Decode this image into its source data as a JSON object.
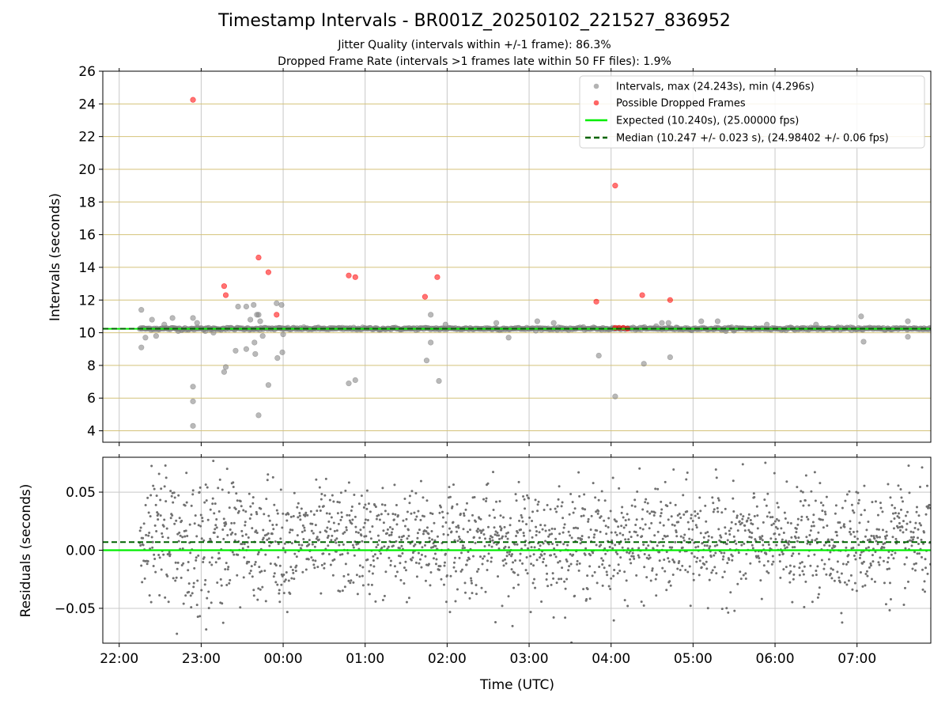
{
  "title": "Timestamp Intervals - BR001Z_20250102_221527_836952",
  "subtitles": [
    "Jitter Quality (intervals within +/-1 frame): 86.3%",
    "Dropped Frame Rate (intervals >1 frames late within 50 FF files): 1.9%"
  ],
  "colors": {
    "intervals": "#808080",
    "dropped": "#ff0000",
    "expected": "#00ee00",
    "median": "#006400",
    "hgrid": "#d4c27a",
    "vgrid": "#c8c8c8"
  },
  "chart_data": [
    {
      "type": "scatter",
      "title": "",
      "xlabel": "",
      "ylabel": "Intervals (seconds)",
      "xlim_hours": [
        -2.2,
        7.9
      ],
      "ylim": [
        3.3,
        26
      ],
      "x_ticks_hours": [
        -2,
        -1,
        0,
        1,
        2,
        3,
        4,
        5,
        6,
        7
      ],
      "y_ticks": [
        4,
        6,
        8,
        10,
        12,
        14,
        16,
        18,
        20,
        22,
        24,
        26
      ],
      "y_tick_labels": [
        "4",
        "6",
        "8",
        "10",
        "12",
        "14",
        "16",
        "18",
        "20",
        "22",
        "24",
        "26"
      ],
      "grid": true,
      "legend_position": "top-right",
      "legend": [
        "Intervals, max (24.243s), min (4.296s)",
        "Possible Dropped Frames",
        "Expected (10.240s), (25.00000 fps)",
        "Median (10.247 +/- 0.023 s), (24.98402 +/- 0.06 fps)"
      ],
      "expected_value": 10.24,
      "median_value": 10.247,
      "outlier_points": [
        [
          -1.73,
          11.4
        ],
        [
          -1.73,
          9.1
        ],
        [
          -1.68,
          9.7
        ],
        [
          -1.6,
          10.8
        ],
        [
          -1.55,
          9.8
        ],
        [
          -1.45,
          10.5
        ],
        [
          -1.35,
          10.9
        ],
        [
          -1.28,
          10.1
        ],
        [
          -1.1,
          10.9
        ],
        [
          -1.1,
          6.7
        ],
        [
          -1.1,
          5.8
        ],
        [
          -1.1,
          4.3
        ],
        [
          -1.05,
          10.6
        ],
        [
          -0.95,
          10.1
        ],
        [
          -0.85,
          10.0
        ],
        [
          -0.72,
          7.6
        ],
        [
          -0.7,
          7.9
        ],
        [
          -0.58,
          8.9
        ],
        [
          -0.55,
          11.6
        ],
        [
          -0.45,
          11.6
        ],
        [
          -0.45,
          9.0
        ],
        [
          -0.4,
          10.8
        ],
        [
          -0.36,
          11.7
        ],
        [
          -0.35,
          9.4
        ],
        [
          -0.34,
          8.7
        ],
        [
          -0.32,
          11.1
        ],
        [
          -0.3,
          11.1
        ],
        [
          -0.3,
          4.95
        ],
        [
          -0.28,
          10.7
        ],
        [
          -0.25,
          9.8
        ],
        [
          -0.18,
          6.8
        ],
        [
          -0.08,
          11.8
        ],
        [
          -0.07,
          8.45
        ],
        [
          -0.05,
          10.3
        ],
        [
          -0.02,
          11.7
        ],
        [
          -0.01,
          8.8
        ],
        [
          0.0,
          9.9
        ],
        [
          0.8,
          6.9
        ],
        [
          0.88,
          7.1
        ],
        [
          1.75,
          8.3
        ],
        [
          1.8,
          9.4
        ],
        [
          1.8,
          11.1
        ],
        [
          1.9,
          7.05
        ],
        [
          1.98,
          10.5
        ],
        [
          2.6,
          10.6
        ],
        [
          2.75,
          9.7
        ],
        [
          3.1,
          10.7
        ],
        [
          3.3,
          10.6
        ],
        [
          3.85,
          8.6
        ],
        [
          4.05,
          6.1
        ],
        [
          4.4,
          8.1
        ],
        [
          4.55,
          10.4
        ],
        [
          4.62,
          10.6
        ],
        [
          4.7,
          10.6
        ],
        [
          4.72,
          8.5
        ],
        [
          5.1,
          10.7
        ],
        [
          5.3,
          10.7
        ],
        [
          5.4,
          10.1
        ],
        [
          5.9,
          10.5
        ],
        [
          6.5,
          10.5
        ],
        [
          7.05,
          11.0
        ],
        [
          7.08,
          9.45
        ],
        [
          7.62,
          10.7
        ],
        [
          7.62,
          9.75
        ]
      ],
      "dropped_points": [
        [
          -1.1,
          24.25
        ],
        [
          -0.72,
          12.85
        ],
        [
          -0.7,
          12.3
        ],
        [
          -0.3,
          14.6
        ],
        [
          -0.18,
          13.7
        ],
        [
          -0.08,
          11.1
        ],
        [
          0.8,
          13.5
        ],
        [
          0.88,
          13.4
        ],
        [
          1.73,
          12.2
        ],
        [
          1.88,
          13.4
        ],
        [
          3.82,
          11.9
        ],
        [
          4.05,
          19.0
        ],
        [
          4.38,
          12.3
        ],
        [
          4.72,
          12.0
        ],
        [
          4.05,
          10.3
        ],
        [
          4.1,
          10.3
        ],
        [
          4.15,
          10.3
        ],
        [
          4.2,
          10.25
        ]
      ],
      "x_data_range_hours": [
        -1.75,
        7.9
      ]
    },
    {
      "type": "scatter",
      "title": "",
      "xlabel": "Time (UTC)",
      "ylabel": "Residuals (seconds)",
      "xlim_hours": [
        -2.2,
        7.9
      ],
      "ylim": [
        -0.08,
        0.08
      ],
      "x_ticks_hours": [
        -2,
        -1,
        0,
        1,
        2,
        3,
        4,
        5,
        6,
        7
      ],
      "x_tick_labels": [
        "22:00",
        "23:00",
        "00:00",
        "01:00",
        "02:00",
        "03:00",
        "04:00",
        "05:00",
        "06:00",
        "07:00"
      ],
      "y_ticks": [
        0.05,
        0.0,
        -0.05
      ],
      "y_tick_labels": [
        "0.05",
        "0.00",
        "−0.05"
      ],
      "grid": true,
      "expected_value": 0.0,
      "median_value": 0.007,
      "residual_std": 0.023,
      "approx_points": 2000,
      "x_data_range_hours": [
        -1.75,
        7.9
      ]
    }
  ]
}
